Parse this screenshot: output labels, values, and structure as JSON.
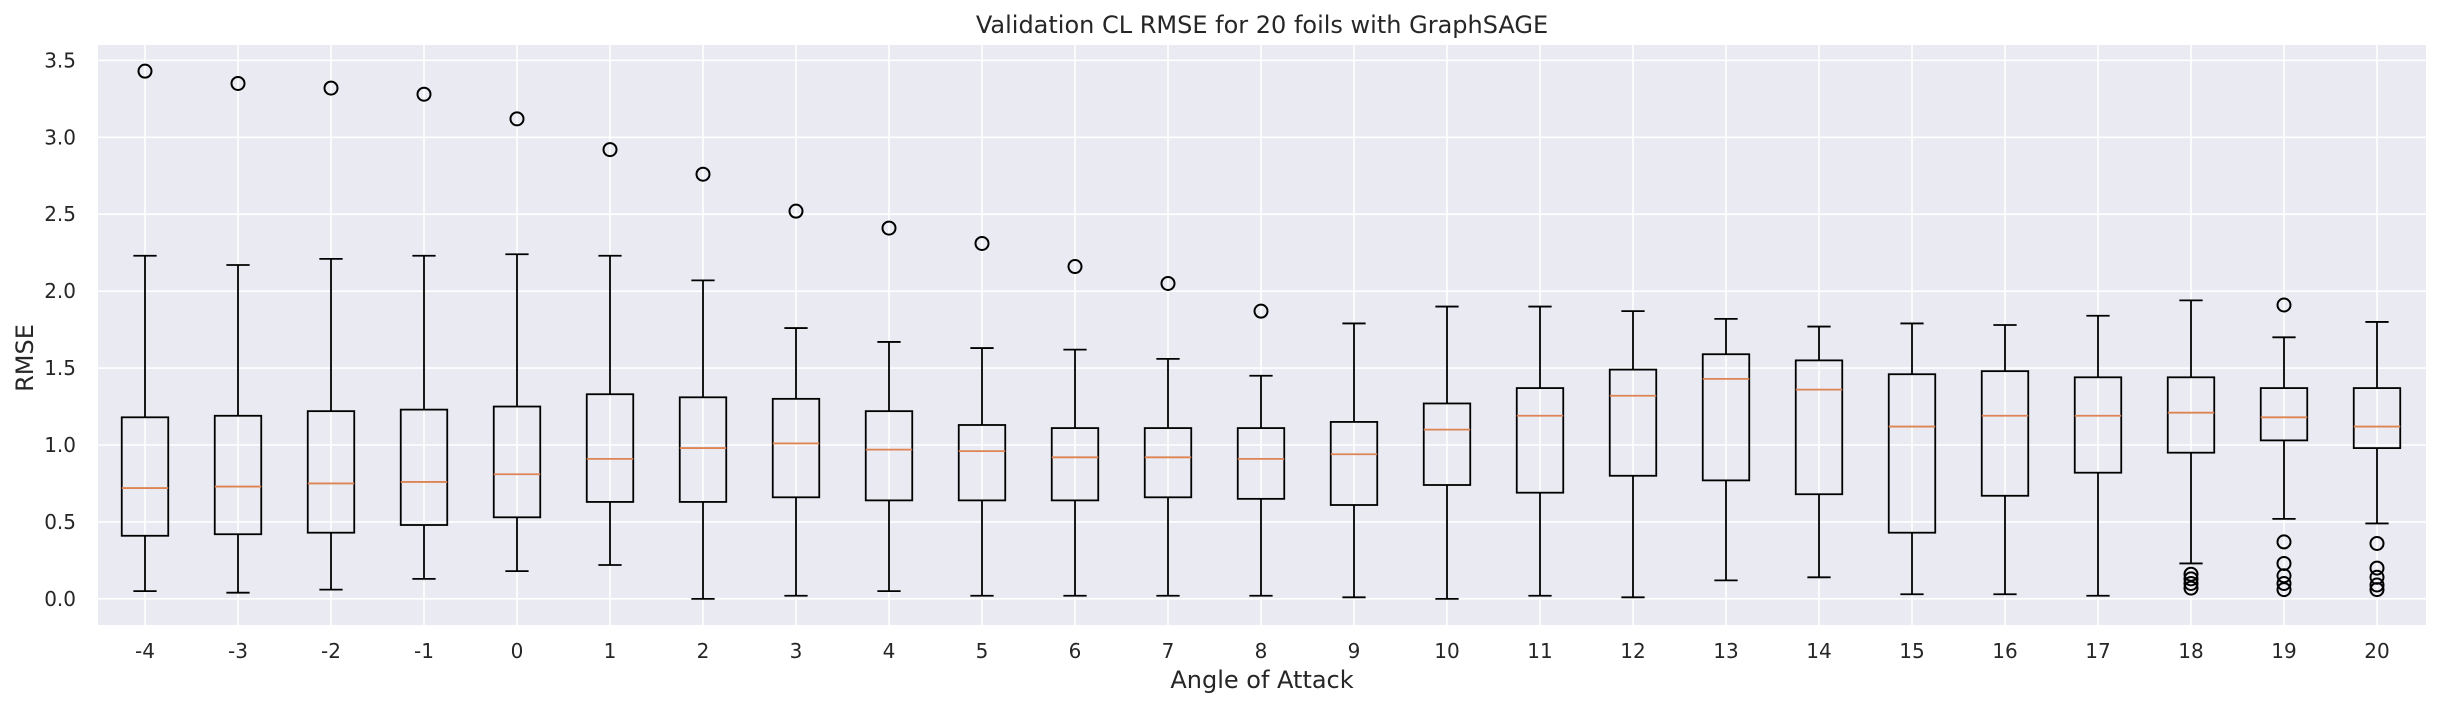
{
  "chart_data": {
    "type": "boxplot",
    "title": "Validation CL RMSE for 20 foils with GraphSAGE",
    "xlabel": "Angle of Attack",
    "ylabel": "RMSE",
    "ylim": [
      -0.17,
      3.6
    ],
    "yticks": [
      0.0,
      0.5,
      1.0,
      1.5,
      2.0,
      2.5,
      3.0,
      3.5
    ],
    "ytick_labels": [
      "0.0",
      "0.5",
      "1.0",
      "1.5",
      "2.0",
      "2.5",
      "3.0",
      "3.5"
    ],
    "grid": true,
    "colors": {
      "background": "#eaeaf2",
      "grid": "#ffffff",
      "box": "#000000",
      "median": "#dd8452",
      "flier": "#000000"
    },
    "categories": [
      "-4",
      "-3",
      "-2",
      "-1",
      "0",
      "1",
      "2",
      "3",
      "4",
      "5",
      "6",
      "7",
      "8",
      "9",
      "10",
      "11",
      "12",
      "13",
      "14",
      "15",
      "16",
      "17",
      "18",
      "19",
      "20"
    ],
    "boxes": [
      {
        "label": "-4",
        "whislo": 0.05,
        "q1": 0.41,
        "med": 0.72,
        "q3": 1.18,
        "whishi": 2.23,
        "fliers": [
          3.43
        ]
      },
      {
        "label": "-3",
        "whislo": 0.04,
        "q1": 0.42,
        "med": 0.73,
        "q3": 1.19,
        "whishi": 2.17,
        "fliers": [
          3.35
        ]
      },
      {
        "label": "-2",
        "whislo": 0.06,
        "q1": 0.43,
        "med": 0.75,
        "q3": 1.22,
        "whishi": 2.21,
        "fliers": [
          3.32
        ]
      },
      {
        "label": "-1",
        "whislo": 0.13,
        "q1": 0.48,
        "med": 0.76,
        "q3": 1.23,
        "whishi": 2.23,
        "fliers": [
          3.28
        ]
      },
      {
        "label": "0",
        "whislo": 0.18,
        "q1": 0.53,
        "med": 0.81,
        "q3": 1.25,
        "whishi": 2.24,
        "fliers": [
          3.12
        ]
      },
      {
        "label": "1",
        "whislo": 0.22,
        "q1": 0.63,
        "med": 0.91,
        "q3": 1.33,
        "whishi": 2.23,
        "fliers": [
          2.92
        ]
      },
      {
        "label": "2",
        "whislo": 0.0,
        "q1": 0.63,
        "med": 0.98,
        "q3": 1.31,
        "whishi": 2.07,
        "fliers": [
          2.76
        ]
      },
      {
        "label": "3",
        "whislo": 0.02,
        "q1": 0.66,
        "med": 1.01,
        "q3": 1.3,
        "whishi": 1.76,
        "fliers": [
          2.52
        ]
      },
      {
        "label": "4",
        "whislo": 0.05,
        "q1": 0.64,
        "med": 0.97,
        "q3": 1.22,
        "whishi": 1.67,
        "fliers": [
          2.41
        ]
      },
      {
        "label": "5",
        "whislo": 0.02,
        "q1": 0.64,
        "med": 0.96,
        "q3": 1.13,
        "whishi": 1.63,
        "fliers": [
          2.31
        ]
      },
      {
        "label": "6",
        "whislo": 0.02,
        "q1": 0.64,
        "med": 0.92,
        "q3": 1.11,
        "whishi": 1.62,
        "fliers": [
          2.16
        ]
      },
      {
        "label": "7",
        "whislo": 0.02,
        "q1": 0.66,
        "med": 0.92,
        "q3": 1.11,
        "whishi": 1.56,
        "fliers": [
          2.05
        ]
      },
      {
        "label": "8",
        "whislo": 0.02,
        "q1": 0.65,
        "med": 0.91,
        "q3": 1.11,
        "whishi": 1.45,
        "fliers": [
          1.87
        ]
      },
      {
        "label": "9",
        "whislo": 0.01,
        "q1": 0.61,
        "med": 0.94,
        "q3": 1.15,
        "whishi": 1.79,
        "fliers": []
      },
      {
        "label": "10",
        "whislo": 0.0,
        "q1": 0.74,
        "med": 1.1,
        "q3": 1.27,
        "whishi": 1.9,
        "fliers": []
      },
      {
        "label": "11",
        "whislo": 0.02,
        "q1": 0.69,
        "med": 1.19,
        "q3": 1.37,
        "whishi": 1.9,
        "fliers": []
      },
      {
        "label": "12",
        "whislo": 0.01,
        "q1": 0.8,
        "med": 1.32,
        "q3": 1.49,
        "whishi": 1.87,
        "fliers": []
      },
      {
        "label": "13",
        "whislo": 0.12,
        "q1": 0.77,
        "med": 1.43,
        "q3": 1.59,
        "whishi": 1.82,
        "fliers": []
      },
      {
        "label": "14",
        "whislo": 0.14,
        "q1": 0.68,
        "med": 1.36,
        "q3": 1.55,
        "whishi": 1.77,
        "fliers": []
      },
      {
        "label": "15",
        "whislo": 0.03,
        "q1": 0.43,
        "med": 1.12,
        "q3": 1.46,
        "whishi": 1.79,
        "fliers": []
      },
      {
        "label": "16",
        "whislo": 0.03,
        "q1": 0.67,
        "med": 1.19,
        "q3": 1.48,
        "whishi": 1.78,
        "fliers": []
      },
      {
        "label": "17",
        "whislo": 0.02,
        "q1": 0.82,
        "med": 1.19,
        "q3": 1.44,
        "whishi": 1.84,
        "fliers": []
      },
      {
        "label": "18",
        "whislo": 0.23,
        "q1": 0.95,
        "med": 1.21,
        "q3": 1.44,
        "whishi": 1.94,
        "fliers": [
          0.16,
          0.13,
          0.1,
          0.07
        ]
      },
      {
        "label": "19",
        "whislo": 0.52,
        "q1": 1.03,
        "med": 1.18,
        "q3": 1.37,
        "whishi": 1.7,
        "fliers": [
          1.91,
          0.37,
          0.23,
          0.15,
          0.1,
          0.06
        ]
      },
      {
        "label": "20",
        "whislo": 0.49,
        "q1": 0.98,
        "med": 1.12,
        "q3": 1.37,
        "whishi": 1.8,
        "fliers": [
          0.36,
          0.2,
          0.14,
          0.09,
          0.06
        ]
      }
    ]
  }
}
